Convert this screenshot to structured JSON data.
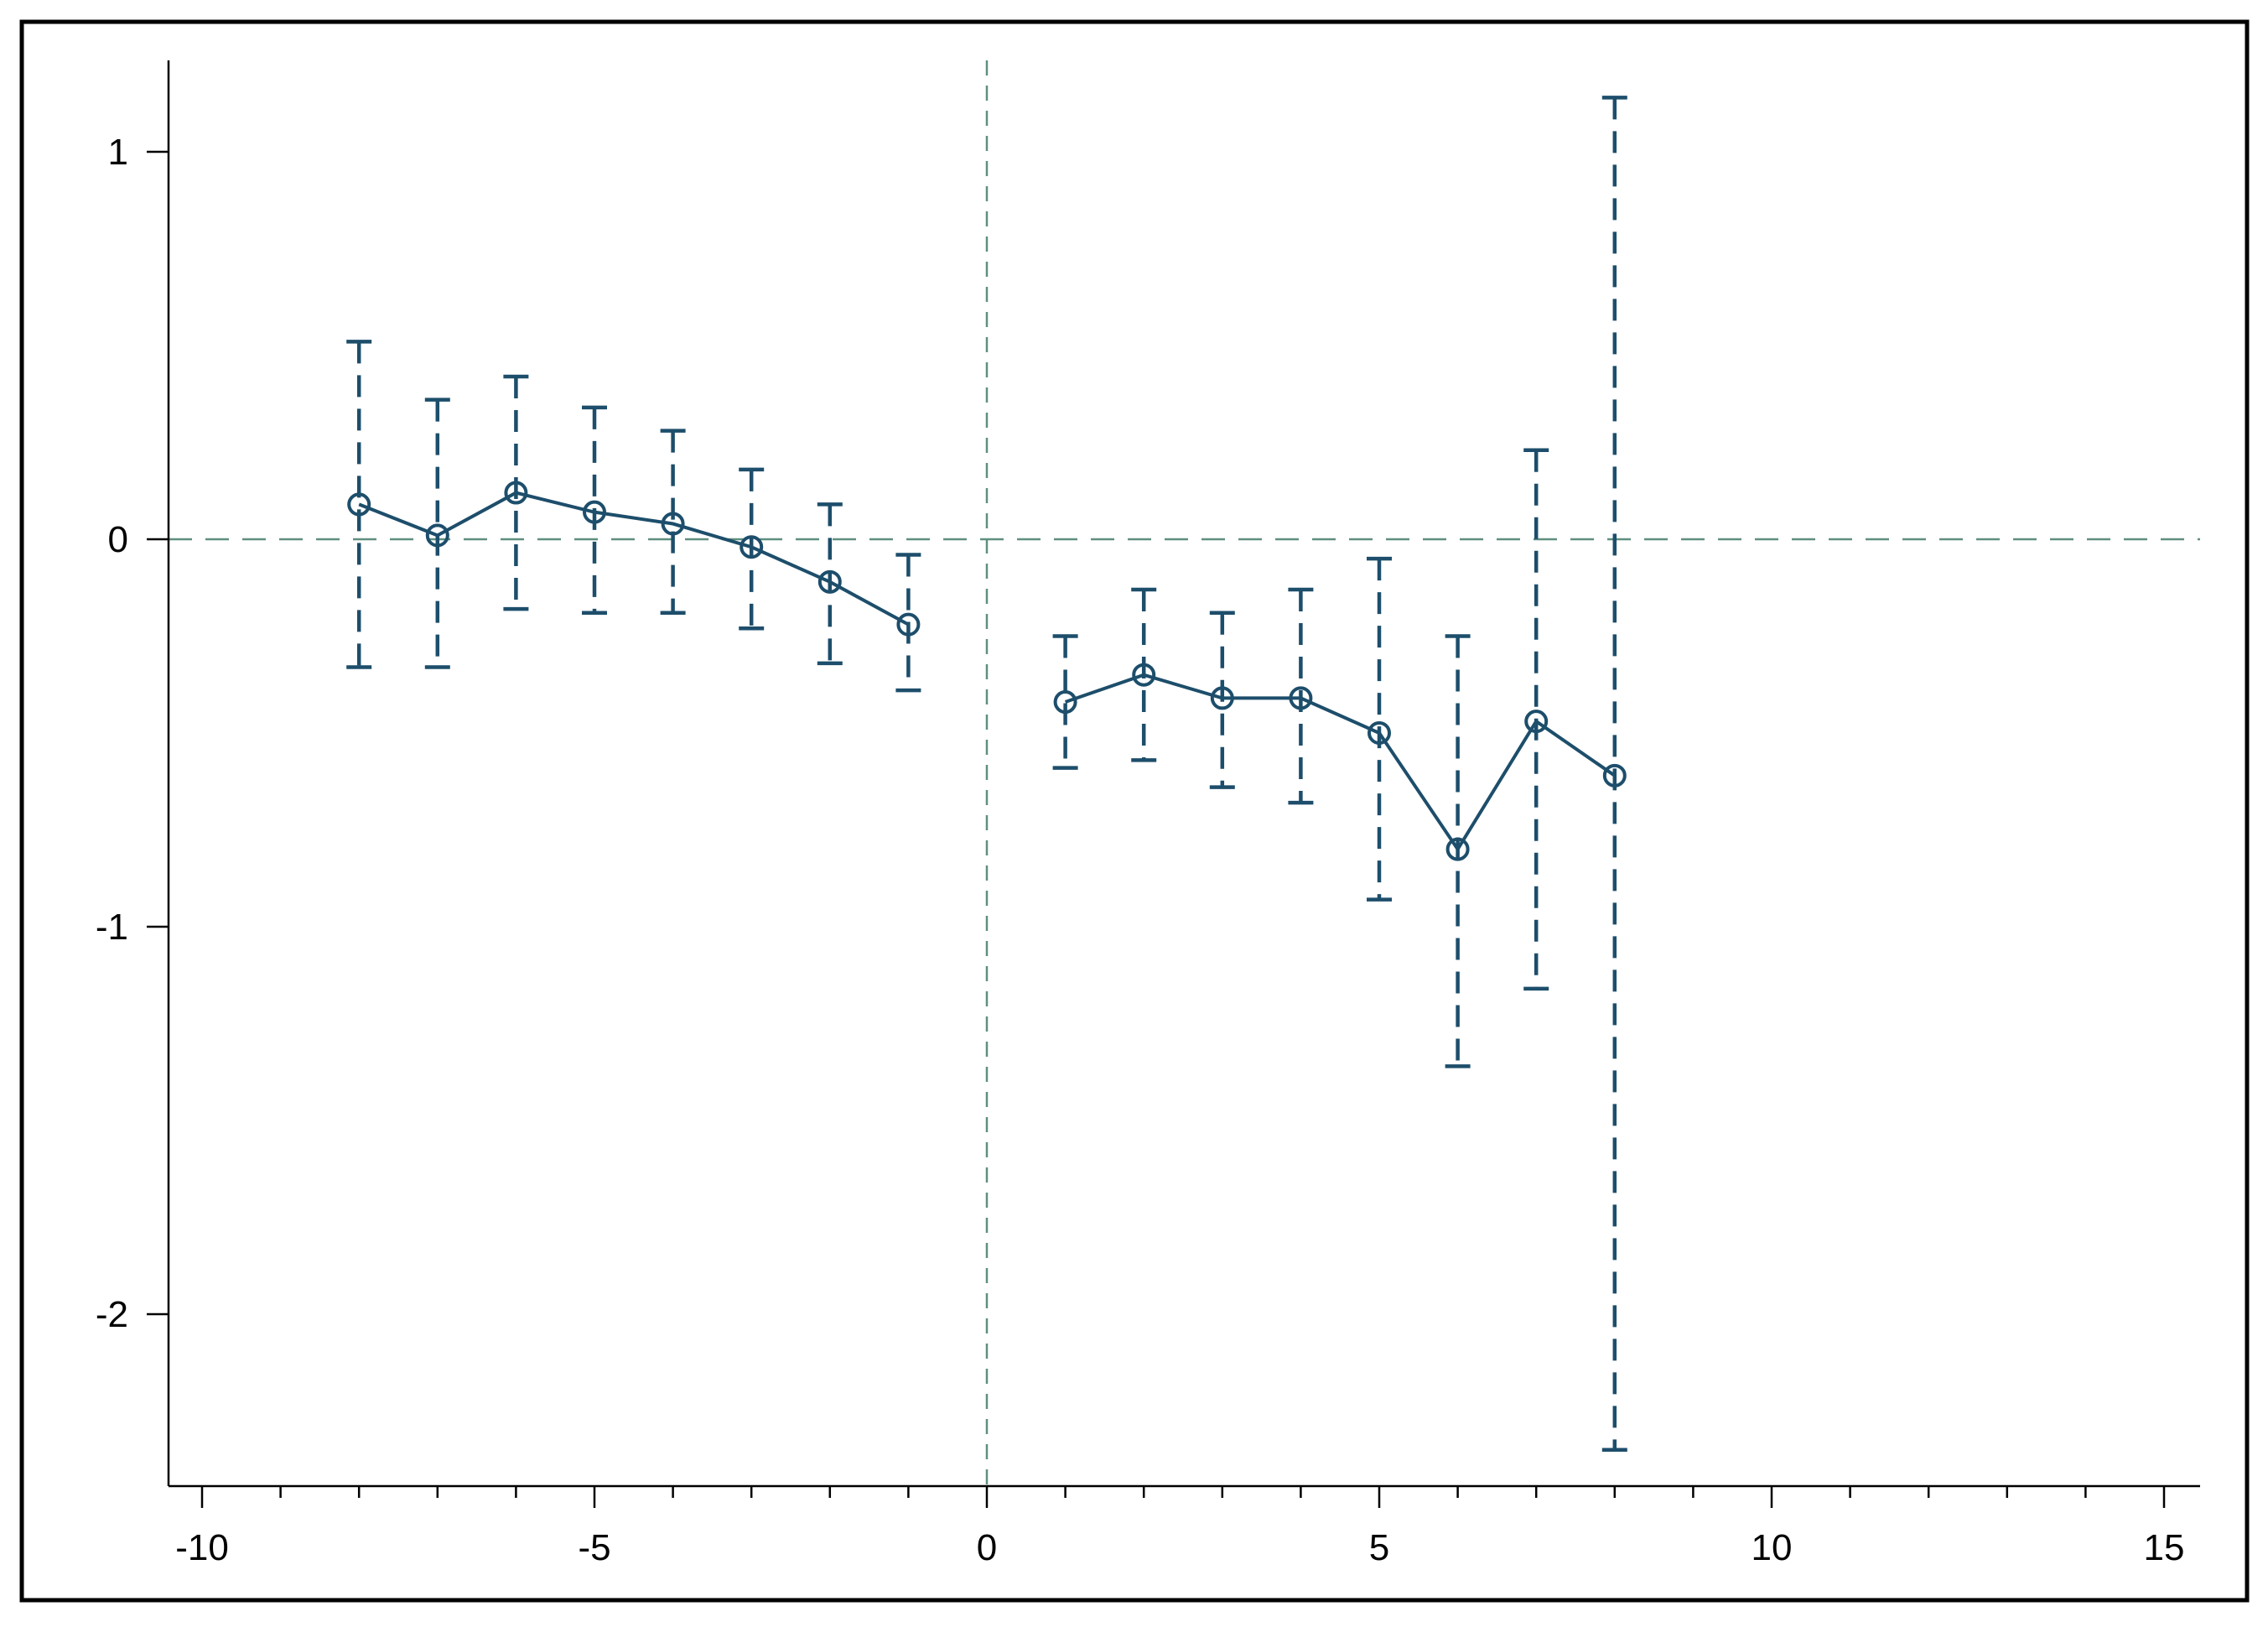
{
  "chart_data": {
    "type": "line",
    "title": "",
    "xlabel": "",
    "ylabel": "",
    "xlim": [
      -10.5,
      15.5
    ],
    "ylim": [
      -2.43,
      1.23
    ],
    "x_ticks": [
      -10,
      -5,
      0,
      5,
      10,
      15
    ],
    "x_tick_labels": [
      "-10",
      "-5",
      "0",
      "5",
      "10",
      "15"
    ],
    "x_minor_ticks": [
      -9,
      -8,
      -7,
      -6,
      -4,
      -3,
      -2,
      -1,
      1,
      2,
      3,
      4,
      6,
      7,
      8,
      9,
      11,
      12,
      13,
      14
    ],
    "y_ticks": [
      1,
      0,
      -1,
      -2
    ],
    "y_tick_labels": [
      "1",
      "0",
      "-1",
      "-2"
    ],
    "reference_lines": [
      {
        "axis": "x",
        "value": 0,
        "style": "dashed"
      },
      {
        "axis": "y",
        "value": 0,
        "style": "dashed"
      }
    ],
    "grid": false,
    "legend": "none",
    "series": [
      {
        "segment": "pre",
        "x": [
          -8,
          -7,
          -6,
          -5,
          -4,
          -3,
          -2,
          -1
        ],
        "y": [
          0.09,
          0.01,
          0.12,
          0.07,
          0.04,
          -0.02,
          -0.11,
          -0.22
        ],
        "ci_low": [
          -0.33,
          -0.33,
          -0.18,
          -0.19,
          -0.19,
          -0.23,
          -0.32,
          -0.39
        ],
        "ci_high": [
          0.51,
          0.36,
          0.42,
          0.34,
          0.28,
          0.18,
          0.09,
          -0.04
        ]
      },
      {
        "segment": "post",
        "x": [
          1,
          2,
          3,
          4,
          5,
          6,
          7,
          8
        ],
        "y": [
          -0.42,
          -0.35,
          -0.41,
          -0.41,
          -0.5,
          -0.8,
          -0.47,
          -0.61
        ],
        "ci_low": [
          -0.59,
          -0.57,
          -0.64,
          -0.68,
          -0.93,
          -1.36,
          -1.16,
          -2.35
        ],
        "ci_high": [
          -0.25,
          -0.13,
          -0.19,
          -0.13,
          -0.05,
          -0.25,
          0.23,
          1.14
        ]
      }
    ],
    "colors": {
      "series": "#1d4e6b",
      "error_bar": "#1d4e6b",
      "reference_line": "#5f8f7f",
      "axis": "#000000",
      "frame": "#000000",
      "background": "#ffffff"
    }
  }
}
